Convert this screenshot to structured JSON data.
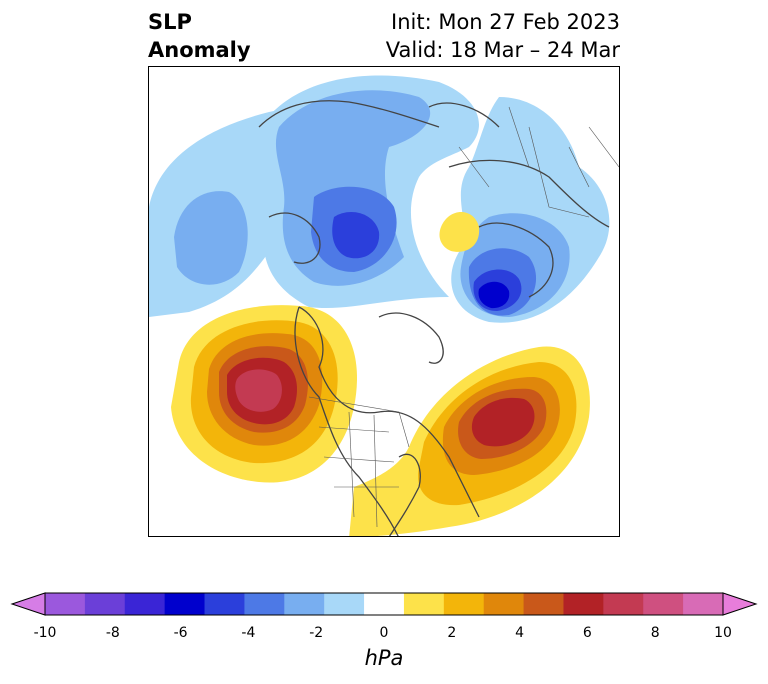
{
  "header": {
    "variable_line1": "SLP",
    "variable_line2": "Anomaly",
    "init": "Init: Mon 27 Feb 2023",
    "valid": "Valid: 18 Mar – 24 Mar"
  },
  "colorbar": {
    "unit": "hPa",
    "ticks": [
      "-10",
      "-8",
      "-6",
      "-4",
      "-2",
      "0",
      "2",
      "4",
      "6",
      "8",
      "10"
    ],
    "colors": [
      "#d67de6",
      "#9b58dd",
      "#6b3fd8",
      "#3a25d6",
      "#0000cd",
      "#2b3fdb",
      "#4d79e6",
      "#78aef0",
      "#a8d8f8",
      "#ffffff",
      "#fde24a",
      "#f3b50a",
      "#e0870b",
      "#c9581a",
      "#b22226",
      "#c33a52",
      "#cf5080",
      "#d86bb6",
      "#e87ddb"
    ]
  },
  "map": {
    "anomalies": [
      {
        "name": "pacific-low",
        "levels": [
          "#a8d8f8",
          "#78aef0"
        ]
      },
      {
        "name": "hudson-low",
        "levels": [
          "#a8d8f8",
          "#78aef0",
          "#4d79e6",
          "#2b3fdb"
        ]
      },
      {
        "name": "scandinavia-low",
        "levels": [
          "#a8d8f8",
          "#78aef0",
          "#4d79e6",
          "#2b3fdb",
          "#0000cd"
        ]
      },
      {
        "name": "north-pacific-high",
        "levels": [
          "#fde24a",
          "#f3b50a",
          "#e0870b",
          "#c9581a",
          "#b22226",
          "#c33a52"
        ]
      },
      {
        "name": "atlantic-high",
        "levels": [
          "#fde24a",
          "#f3b50a",
          "#e0870b",
          "#c9581a",
          "#b22226"
        ]
      },
      {
        "name": "siberia-high",
        "levels": [
          "#fde24a"
        ]
      }
    ]
  }
}
